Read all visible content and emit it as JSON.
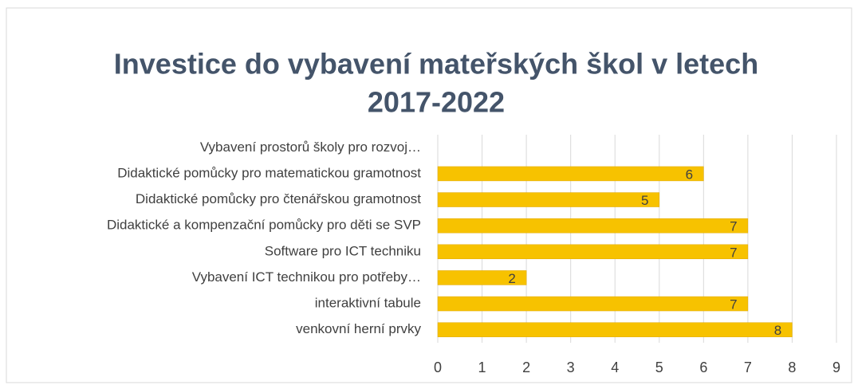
{
  "chart_data": {
    "type": "bar",
    "orientation": "horizontal",
    "title": [
      "Investice do vybavení mateřských škol v letech",
      "2017-2022"
    ],
    "categories": [
      "Vybavení prostorů školy pro rozvoj…",
      "Didaktické pomůcky pro matematickou gramotnost",
      "Didaktické pomůcky pro čtenářskou gramotnost",
      "Didaktické a kompenzační pomůcky pro děti se SVP",
      "Software pro ICT techniku",
      "Vybavení ICT technikou pro potřeby…",
      "interaktivní tabule",
      "venkovní herní prvky"
    ],
    "values": [
      null,
      6,
      5,
      7,
      7,
      2,
      7,
      8
    ],
    "color": "#f7c200",
    "xlim": [
      0,
      9
    ],
    "xticks": [
      0,
      1,
      2,
      3,
      4,
      5,
      6,
      7,
      8,
      9
    ],
    "grid": true
  }
}
